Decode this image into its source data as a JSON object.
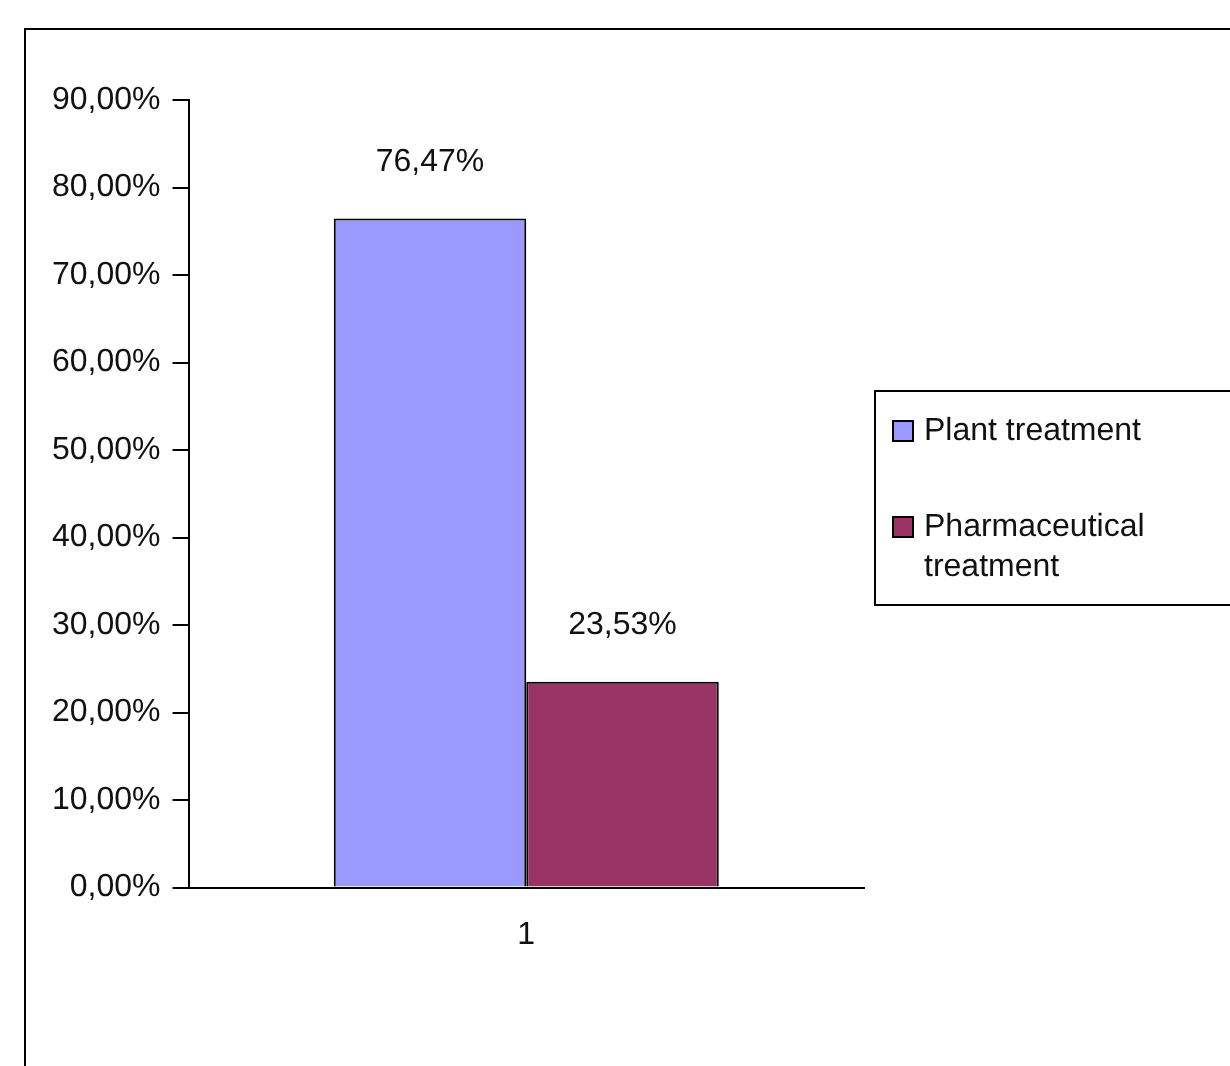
{
  "chart_data": {
    "type": "bar",
    "categories": [
      "1"
    ],
    "series": [
      {
        "name": "Plant treatment",
        "color": "#9999ff",
        "values": [
          76.47
        ],
        "value_labels": [
          "76,47%"
        ]
      },
      {
        "name": "Pharmaceutical treatment",
        "color": "#993366",
        "values": [
          23.53
        ],
        "value_labels": [
          "23,53%"
        ]
      }
    ],
    "ylim": [
      0,
      90
    ],
    "yticks": [
      {
        "value": 0,
        "label": "0,00%"
      },
      {
        "value": 10,
        "label": "10,00%"
      },
      {
        "value": 20,
        "label": "20,00%"
      },
      {
        "value": 30,
        "label": "30,00%"
      },
      {
        "value": 40,
        "label": "40,00%"
      },
      {
        "value": 50,
        "label": "50,00%"
      },
      {
        "value": 60,
        "label": "60,00%"
      },
      {
        "value": 70,
        "label": "70,00%"
      },
      {
        "value": 80,
        "label": "80,00%"
      },
      {
        "value": 90,
        "label": "90,00%"
      }
    ],
    "grid": false,
    "legend": "right"
  }
}
